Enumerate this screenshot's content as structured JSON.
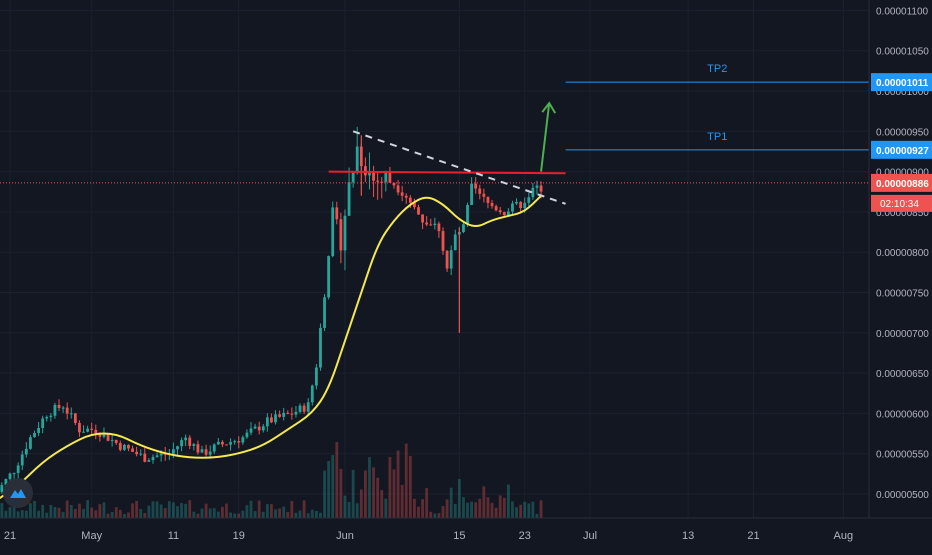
{
  "colors": {
    "background": "#131722",
    "up": "#26a69a",
    "down": "#ef5350",
    "grid": "#1c2030",
    "axis_text": "#b2b5be",
    "ma_line": "#f5e94e",
    "resistance": "#e8202c",
    "trendline": "#d1d4dc",
    "target_line": "#2196f3",
    "arrow": "#4caf50",
    "price_tag": "#ef5350"
  },
  "logo": {
    "icon": "tradingview-cloud-icon"
  },
  "chart_data": {
    "type": "candlestick",
    "y_axis": {
      "side": "right",
      "range": [
        4.8e-06,
        1.11e-05
      ],
      "ticks": [
        "0.00001100",
        "0.00001050",
        "0.00001000",
        "0.00000950",
        "0.00000900",
        "0.00000850",
        "0.00000800",
        "0.00000750",
        "0.00000700",
        "0.00000650",
        "0.00000600",
        "0.00000550",
        "0.00000500"
      ]
    },
    "x_axis": {
      "start": "2020-04-21",
      "end": "2020-08-07",
      "ticks": [
        {
          "date": "2020-04-21",
          "label": "21"
        },
        {
          "date": "2020-05-01",
          "label": "May"
        },
        {
          "date": "2020-05-11",
          "label": "11"
        },
        {
          "date": "2020-05-19",
          "label": "19"
        },
        {
          "date": "2020-06-01",
          "label": "Jun"
        },
        {
          "date": "2020-06-15",
          "label": "15"
        },
        {
          "date": "2020-06-23",
          "label": "23"
        },
        {
          "date": "2020-07-01",
          "label": "Jul"
        },
        {
          "date": "2020-07-13",
          "label": "13"
        },
        {
          "date": "2020-07-21",
          "label": "21"
        },
        {
          "date": "2020-08-01",
          "label": "Aug"
        }
      ]
    },
    "price_path": [
      [
        "2020-04-19",
        4.9e-06
      ],
      [
        "2020-04-22",
        5.3e-06
      ],
      [
        "2020-04-24",
        5.7e-06
      ],
      [
        "2020-04-26",
        6e-06
      ],
      [
        "2020-04-28",
        6.1e-06
      ],
      [
        "2020-04-30",
        5.8e-06
      ],
      [
        "2020-05-02",
        5.8e-06
      ],
      [
        "2020-05-05",
        5.6e-06
      ],
      [
        "2020-05-08",
        5.45e-06
      ],
      [
        "2020-05-11",
        5.5e-06
      ],
      [
        "2020-05-13",
        5.7e-06
      ],
      [
        "2020-05-15",
        5.5e-06
      ],
      [
        "2020-05-17",
        5.6e-06
      ],
      [
        "2020-05-20",
        5.7e-06
      ],
      [
        "2020-05-23",
        5.9e-06
      ],
      [
        "2020-05-26",
        6e-06
      ],
      [
        "2020-05-28",
        6.1e-06
      ],
      [
        "2020-05-29",
        6.6e-06
      ],
      [
        "2020-05-30",
        7.5e-06
      ],
      [
        "2020-05-31",
        8.5e-06
      ],
      [
        "2020-06-01",
        8.2e-06
      ],
      [
        "2020-06-02",
        8.8e-06
      ],
      [
        "2020-06-03",
        9.3e-06
      ],
      [
        "2020-06-04",
        9.1e-06
      ],
      [
        "2020-06-05",
        8.9e-06
      ],
      [
        "2020-06-07",
        8.9e-06
      ],
      [
        "2020-06-09",
        8.7e-06
      ],
      [
        "2020-06-11",
        8.4e-06
      ],
      [
        "2020-06-13",
        8.3e-06
      ],
      [
        "2020-06-14",
        7.8e-06
      ],
      [
        "2020-06-15",
        8.2e-06
      ],
      [
        "2020-06-16",
        8.3e-06
      ],
      [
        "2020-06-17",
        8.8e-06
      ],
      [
        "2020-06-19",
        8.6e-06
      ],
      [
        "2020-06-21",
        8.5e-06
      ],
      [
        "2020-06-23",
        8.6e-06
      ],
      [
        "2020-06-25",
        8.8e-06
      ]
    ],
    "wicks": [
      {
        "date": "2020-06-15",
        "high": 8.3e-06,
        "low": 7e-06
      },
      {
        "date": "2020-06-03",
        "high": 9.45e-06,
        "low": 8.7e-06
      }
    ],
    "moving_average_path": [
      [
        "2020-04-19",
        4.9e-06
      ],
      [
        "2020-04-22",
        5.1e-06
      ],
      [
        "2020-04-25",
        5.4e-06
      ],
      [
        "2020-04-28",
        5.6e-06
      ],
      [
        "2020-05-01",
        5.75e-06
      ],
      [
        "2020-05-04",
        5.75e-06
      ],
      [
        "2020-05-07",
        5.6e-06
      ],
      [
        "2020-05-10",
        5.5e-06
      ],
      [
        "2020-05-13",
        5.45e-06
      ],
      [
        "2020-05-16",
        5.45e-06
      ],
      [
        "2020-05-19",
        5.5e-06
      ],
      [
        "2020-05-22",
        5.6e-06
      ],
      [
        "2020-05-25",
        5.8e-06
      ],
      [
        "2020-05-28",
        6e-06
      ],
      [
        "2020-05-30",
        6.3e-06
      ],
      [
        "2020-06-01",
        6.9e-06
      ],
      [
        "2020-06-03",
        7.5e-06
      ],
      [
        "2020-06-05",
        8.1e-06
      ],
      [
        "2020-06-07",
        8.4e-06
      ],
      [
        "2020-06-09",
        8.6e-06
      ],
      [
        "2020-06-11",
        8.7e-06
      ],
      [
        "2020-06-13",
        8.6e-06
      ],
      [
        "2020-06-15",
        8.4e-06
      ],
      [
        "2020-06-17",
        8.3e-06
      ],
      [
        "2020-06-19",
        8.4e-06
      ],
      [
        "2020-06-21",
        8.45e-06
      ],
      [
        "2020-06-23",
        8.5e-06
      ],
      [
        "2020-06-25",
        8.7e-06
      ]
    ],
    "resistance_line": {
      "from": [
        "2020-05-30",
        9e-06
      ],
      "to": [
        "2020-06-28",
        8.98e-06
      ]
    },
    "down_trendline": {
      "from": [
        "2020-06-02",
        9.5e-06
      ],
      "to": [
        "2020-06-28",
        8.6e-06
      ]
    },
    "breakout_arrow": {
      "from": [
        "2020-06-25",
        9e-06
      ],
      "to": [
        "2020-06-26",
        9.85e-06
      ]
    },
    "targets": [
      {
        "label": "TP1",
        "value": 9.27e-06,
        "tag": "0.00000927",
        "from": "2020-06-28"
      },
      {
        "label": "TP2",
        "value": 1.011e-05,
        "tag": "0.00001011",
        "from": "2020-06-28"
      }
    ],
    "current_price": {
      "value": 8.86e-06,
      "tag": "0.00000886",
      "countdown": "02:10:34"
    }
  }
}
